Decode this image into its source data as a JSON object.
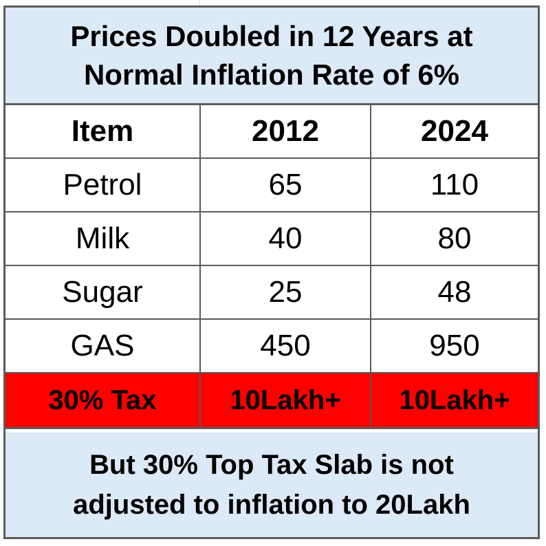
{
  "title": {
    "line1": "Prices Doubled in 12 Years at",
    "line2": "Normal Inflation Rate of 6%"
  },
  "table": {
    "headers": [
      "Item",
      "2012",
      "2024"
    ],
    "rows": [
      [
        "Petrol",
        "65",
        "110"
      ],
      [
        "Milk",
        "40",
        "80"
      ],
      [
        "Sugar",
        "25",
        "48"
      ],
      [
        "GAS",
        "450",
        "950"
      ]
    ],
    "tax_row": [
      "30% Tax",
      "10Lakh+",
      "10Lakh+"
    ]
  },
  "footer": {
    "line1": "But 30% Top Tax Slab is not",
    "line2": "adjusted to inflation to 20Lakh"
  },
  "colors": {
    "band_bg": "#dce9f6",
    "tax_row_bg": "#ff0000",
    "border": "#5a5a5a"
  }
}
